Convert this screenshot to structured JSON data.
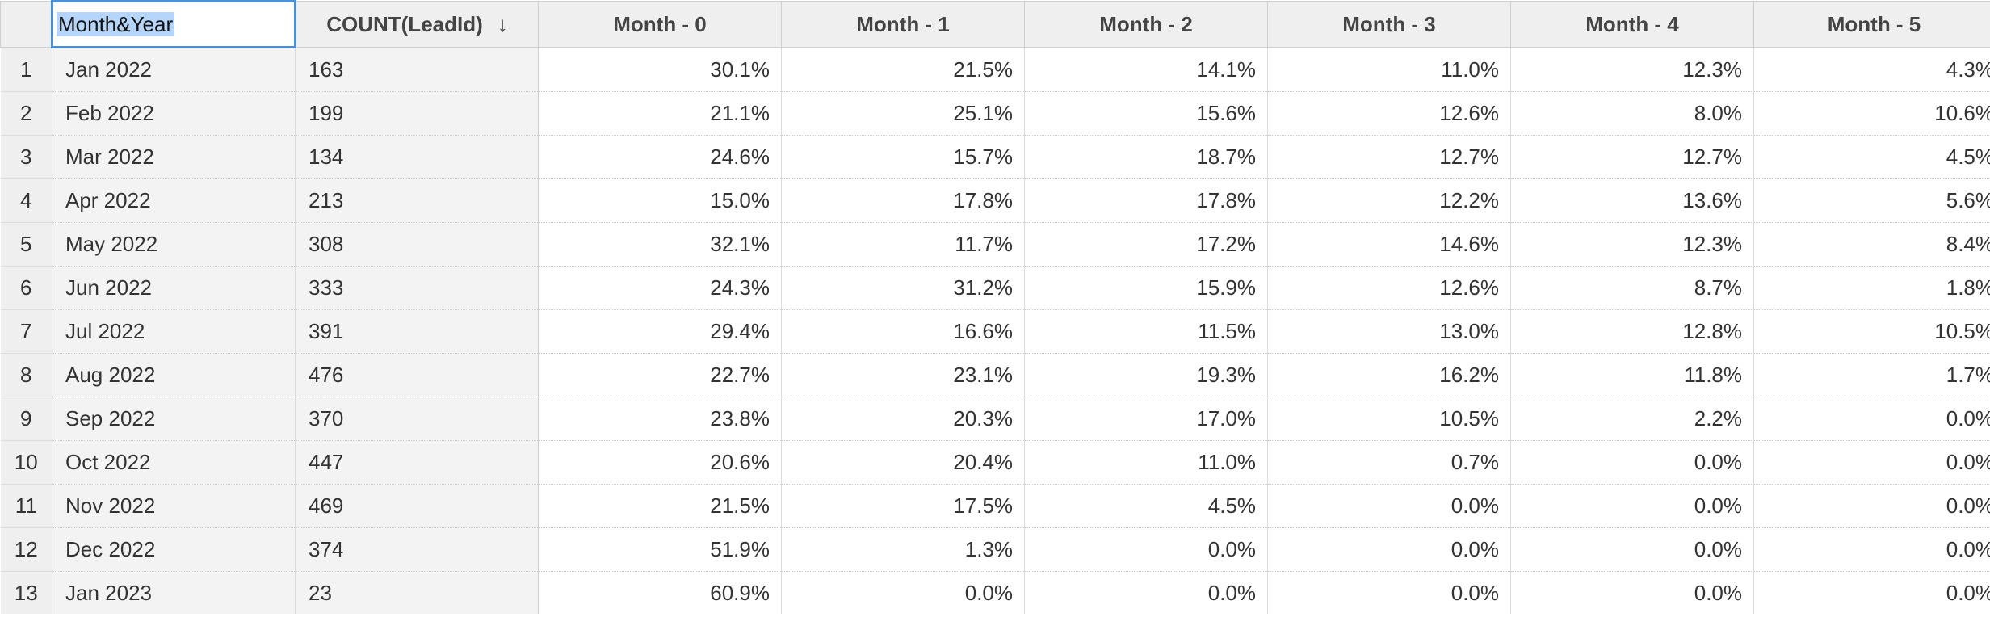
{
  "grid": {
    "columns": [
      {
        "label": "Month&Year",
        "selected": true
      },
      {
        "label": "COUNT(LeadId)",
        "sort": "descending",
        "sort_icon": "arrow-down-icon"
      },
      {
        "label": "Month - 0"
      },
      {
        "label": "Month - 1"
      },
      {
        "label": "Month - 2"
      },
      {
        "label": "Month - 3"
      },
      {
        "label": "Month - 4"
      },
      {
        "label": "Month - 5"
      }
    ],
    "rows": [
      {
        "num": "1",
        "month": "Jan 2022",
        "count": "163",
        "m0": "30.1%",
        "m1": "21.5%",
        "m2": "14.1%",
        "m3": "11.0%",
        "m4": "12.3%",
        "m5": "4.3%"
      },
      {
        "num": "2",
        "month": "Feb 2022",
        "count": "199",
        "m0": "21.1%",
        "m1": "25.1%",
        "m2": "15.6%",
        "m3": "12.6%",
        "m4": "8.0%",
        "m5": "10.6%"
      },
      {
        "num": "3",
        "month": "Mar 2022",
        "count": "134",
        "m0": "24.6%",
        "m1": "15.7%",
        "m2": "18.7%",
        "m3": "12.7%",
        "m4": "12.7%",
        "m5": "4.5%"
      },
      {
        "num": "4",
        "month": "Apr 2022",
        "count": "213",
        "m0": "15.0%",
        "m1": "17.8%",
        "m2": "17.8%",
        "m3": "12.2%",
        "m4": "13.6%",
        "m5": "5.6%"
      },
      {
        "num": "5",
        "month": "May 2022",
        "count": "308",
        "m0": "32.1%",
        "m1": "11.7%",
        "m2": "17.2%",
        "m3": "14.6%",
        "m4": "12.3%",
        "m5": "8.4%"
      },
      {
        "num": "6",
        "month": "Jun 2022",
        "count": "333",
        "m0": "24.3%",
        "m1": "31.2%",
        "m2": "15.9%",
        "m3": "12.6%",
        "m4": "8.7%",
        "m5": "1.8%"
      },
      {
        "num": "7",
        "month": "Jul 2022",
        "count": "391",
        "m0": "29.4%",
        "m1": "16.6%",
        "m2": "11.5%",
        "m3": "13.0%",
        "m4": "12.8%",
        "m5": "10.5%"
      },
      {
        "num": "8",
        "month": "Aug 2022",
        "count": "476",
        "m0": "22.7%",
        "m1": "23.1%",
        "m2": "19.3%",
        "m3": "16.2%",
        "m4": "11.8%",
        "m5": "1.7%"
      },
      {
        "num": "9",
        "month": "Sep 2022",
        "count": "370",
        "m0": "23.8%",
        "m1": "20.3%",
        "m2": "17.0%",
        "m3": "10.5%",
        "m4": "2.2%",
        "m5": "0.0%"
      },
      {
        "num": "10",
        "month": "Oct 2022",
        "count": "447",
        "m0": "20.6%",
        "m1": "20.4%",
        "m2": "11.0%",
        "m3": "0.7%",
        "m4": "0.0%",
        "m5": "0.0%"
      },
      {
        "num": "11",
        "month": "Nov 2022",
        "count": "469",
        "m0": "21.5%",
        "m1": "17.5%",
        "m2": "4.5%",
        "m3": "0.0%",
        "m4": "0.0%",
        "m5": "0.0%"
      },
      {
        "num": "12",
        "month": "Dec 2022",
        "count": "374",
        "m0": "51.9%",
        "m1": "1.3%",
        "m2": "0.0%",
        "m3": "0.0%",
        "m4": "0.0%",
        "m5": "0.0%"
      },
      {
        "num": "13",
        "month": "Jan 2023",
        "count": "23",
        "m0": "60.9%",
        "m1": "0.0%",
        "m2": "0.0%",
        "m3": "0.0%",
        "m4": "0.0%",
        "m5": "0.0%"
      }
    ]
  }
}
